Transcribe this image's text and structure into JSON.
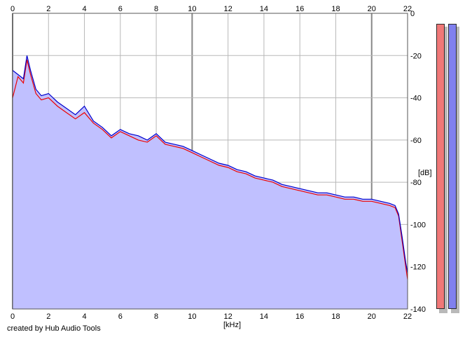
{
  "footer": {
    "credit": "created by Hub Audio Tools"
  },
  "axes": {
    "x_unit": "[kHz]",
    "y_unit": "[dB]"
  },
  "meters": {
    "left_color": "#f07878",
    "right_color": "#8080ee"
  },
  "chart_data": {
    "type": "area",
    "title": "",
    "xlabel": "[kHz]",
    "ylabel": "[dB]",
    "xlim": [
      0,
      22
    ],
    "ylim": [
      -140,
      0
    ],
    "x_ticks": [
      0,
      2,
      4,
      6,
      8,
      10,
      12,
      14,
      16,
      18,
      20,
      22
    ],
    "y_ticks": [
      0,
      -20,
      -40,
      -60,
      -80,
      -100,
      -120,
      -140
    ],
    "grid": true,
    "fill_color": "#c0c0ff",
    "series": [
      {
        "color": "#ee0000",
        "x": [
          0,
          0.3,
          0.6,
          0.8,
          1.0,
          1.3,
          1.6,
          2.0,
          2.5,
          3.0,
          3.5,
          4.0,
          4.5,
          5.0,
          5.5,
          6.0,
          6.5,
          7.0,
          7.5,
          8.0,
          8.5,
          9.0,
          9.5,
          10.0,
          10.5,
          11.0,
          11.5,
          12.0,
          12.5,
          13.0,
          13.5,
          14.0,
          14.5,
          15.0,
          15.5,
          16.0,
          16.5,
          17.0,
          17.5,
          18.0,
          18.5,
          19.0,
          19.5,
          20.0,
          20.5,
          21.0,
          21.3,
          21.5,
          21.7,
          21.9,
          22.0
        ],
        "values": [
          -40,
          -30,
          -33,
          -22,
          -29,
          -38,
          -41,
          -40,
          -44,
          -47,
          -50,
          -47,
          -52,
          -55,
          -59,
          -56,
          -58,
          -60,
          -61,
          -58,
          -62,
          -63,
          -64,
          -66,
          -68,
          -70,
          -72,
          -73,
          -75,
          -76,
          -78,
          -79,
          -80,
          -82,
          -83,
          -84,
          -85,
          -86,
          -86,
          -87,
          -88,
          -88,
          -89,
          -89,
          -90,
          -91,
          -92,
          -96,
          -108,
          -120,
          -126
        ]
      },
      {
        "color": "#0000cc",
        "x": [
          0,
          0.3,
          0.6,
          0.8,
          1.0,
          1.3,
          1.6,
          2.0,
          2.5,
          3.0,
          3.5,
          4.0,
          4.5,
          5.0,
          5.5,
          6.0,
          6.5,
          7.0,
          7.5,
          8.0,
          8.5,
          9.0,
          9.5,
          10.0,
          10.5,
          11.0,
          11.5,
          12.0,
          12.5,
          13.0,
          13.5,
          14.0,
          14.5,
          15.0,
          15.5,
          16.0,
          16.5,
          17.0,
          17.5,
          18.0,
          18.5,
          19.0,
          19.5,
          20.0,
          20.5,
          21.0,
          21.3,
          21.5,
          21.7,
          21.9,
          22.0
        ],
        "values": [
          -27,
          -29,
          -31,
          -20,
          -27,
          -36,
          -39,
          -38,
          -42,
          -45,
          -48,
          -44,
          -51,
          -54,
          -58,
          -55,
          -57,
          -58,
          -60,
          -57,
          -61,
          -62,
          -63,
          -65,
          -67,
          -69,
          -71,
          -72,
          -74,
          -75,
          -77,
          -78,
          -79,
          -81,
          -82,
          -83,
          -84,
          -85,
          -85,
          -86,
          -87,
          -87,
          -88,
          -88,
          -89,
          -90,
          -91,
          -95,
          -106,
          -118,
          -123
        ]
      }
    ]
  }
}
